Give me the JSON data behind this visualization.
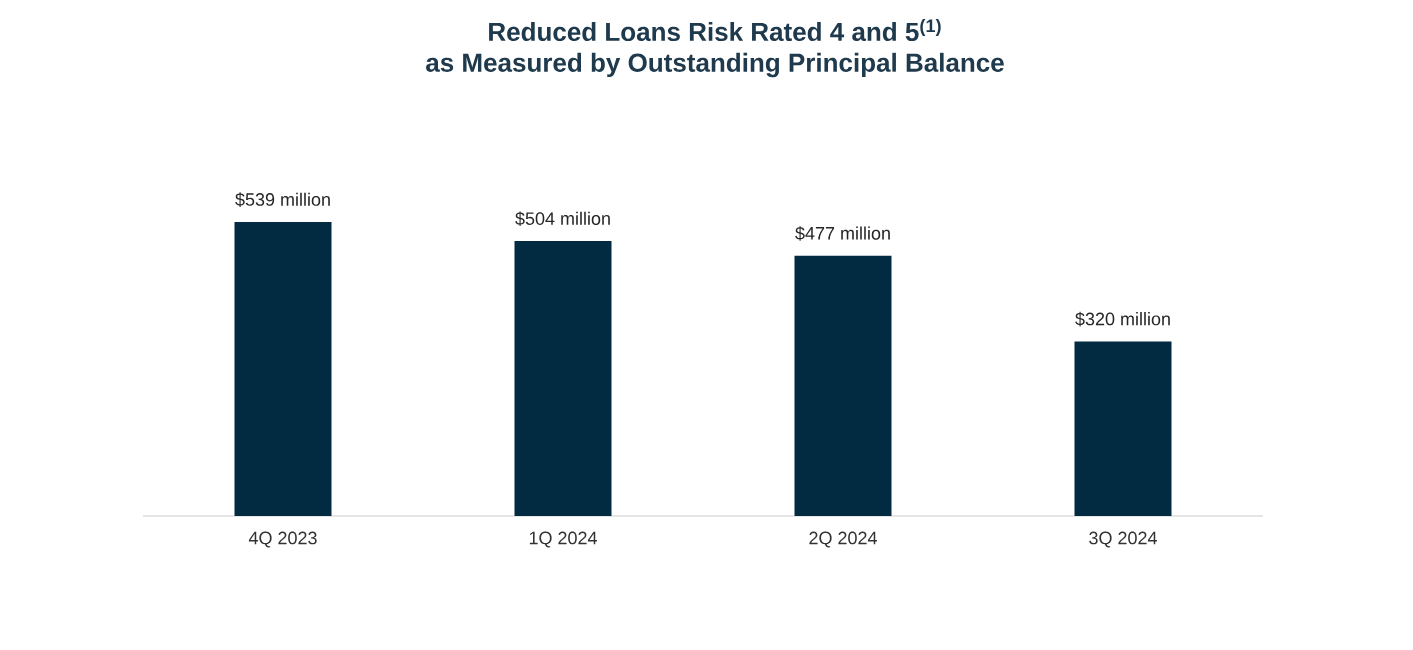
{
  "chart_data": {
    "type": "bar",
    "title": "Reduced Loans Risk Rated 4 and 5$^{(1)}$",
    "subtitle": "as Measured by Outstanding Principal Balance",
    "categories": [
      "4Q 2023",
      "1Q 2024",
      "2Q 2024",
      "3Q 2024"
    ],
    "values": [
      539,
      504,
      477,
      320
    ],
    "value_labels": [
      "$539 million",
      "$504 million",
      "$477 million",
      "$320 million"
    ],
    "color": "#022a40",
    "tick_labels": "x"
  }
}
